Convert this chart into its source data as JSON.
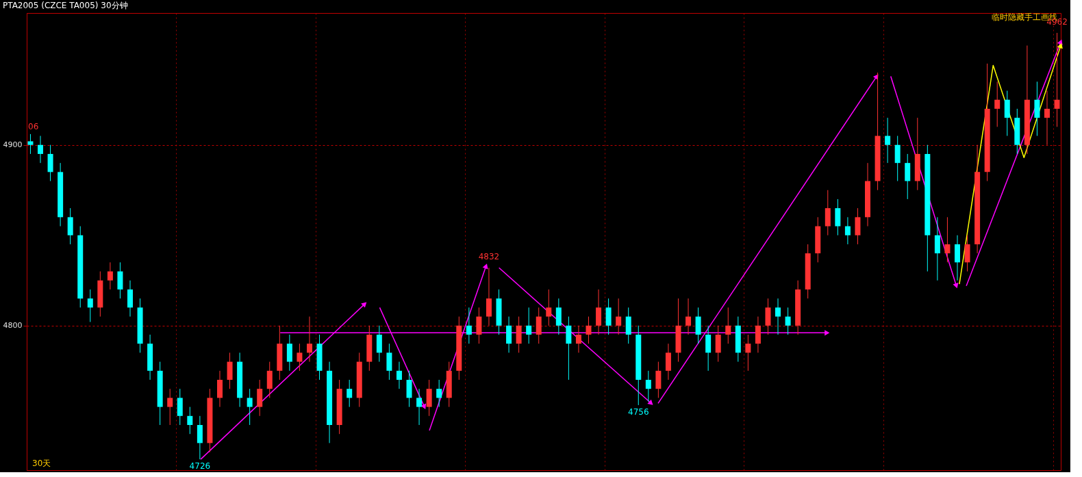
{
  "chart_data": {
    "type": "candlestick",
    "title": "PTA2005 (CZCE TA005)  30分钟",
    "categories": [
      null,
      null,
      null,
      null,
      null,
      null,
      null,
      null,
      null,
      null,
      null,
      null,
      null,
      null,
      null,
      null,
      null,
      null,
      null,
      null,
      null,
      null,
      null,
      null,
      null,
      null,
      null,
      null,
      null,
      null,
      null,
      null,
      null,
      null,
      null,
      null,
      null,
      null,
      null,
      null,
      null,
      null,
      null,
      null,
      null,
      null,
      null,
      null,
      null,
      null,
      null,
      null,
      null,
      null,
      null,
      null,
      null,
      null,
      null,
      null,
      null,
      null,
      null,
      null,
      null,
      null,
      null,
      null,
      null,
      null,
      null,
      null,
      null,
      null,
      null,
      null,
      null,
      null,
      null,
      null,
      null,
      null,
      null,
      null,
      null,
      null,
      null,
      null,
      null,
      null,
      null,
      null,
      null,
      null,
      null,
      null,
      null,
      null,
      null,
      null,
      null,
      null,
      null,
      null
    ],
    "ohlc": [
      [
        4902,
        4906,
        4895,
        4900
      ],
      [
        4900,
        4905,
        4890,
        4895
      ],
      [
        4895,
        4900,
        4880,
        4885
      ],
      [
        4885,
        4890,
        4855,
        4860
      ],
      [
        4860,
        4865,
        4845,
        4850
      ],
      [
        4850,
        4855,
        4810,
        4815
      ],
      [
        4815,
        4820,
        4802,
        4810
      ],
      [
        4810,
        4830,
        4805,
        4825
      ],
      [
        4825,
        4835,
        4820,
        4830
      ],
      [
        4830,
        4835,
        4815,
        4820
      ],
      [
        4820,
        4825,
        4805,
        4810
      ],
      [
        4810,
        4815,
        4785,
        4790
      ],
      [
        4790,
        4795,
        4770,
        4775
      ],
      [
        4775,
        4780,
        4745,
        4755
      ],
      [
        4755,
        4765,
        4745,
        4760
      ],
      [
        4760,
        4765,
        4745,
        4750
      ],
      [
        4750,
        4755,
        4740,
        4745
      ],
      [
        4745,
        4750,
        4726,
        4735
      ],
      [
        4735,
        4765,
        4730,
        4760
      ],
      [
        4760,
        4775,
        4755,
        4770
      ],
      [
        4770,
        4785,
        4765,
        4780
      ],
      [
        4780,
        4785,
        4755,
        4760
      ],
      [
        4760,
        4765,
        4745,
        4755
      ],
      [
        4755,
        4770,
        4750,
        4765
      ],
      [
        4765,
        4780,
        4760,
        4775
      ],
      [
        4775,
        4800,
        4770,
        4790
      ],
      [
        4790,
        4795,
        4775,
        4780
      ],
      [
        4780,
        4790,
        4775,
        4785
      ],
      [
        4785,
        4805,
        4780,
        4790
      ],
      [
        4790,
        4795,
        4770,
        4775
      ],
      [
        4775,
        4780,
        4735,
        4745
      ],
      [
        4745,
        4770,
        4740,
        4765
      ],
      [
        4765,
        4770,
        4755,
        4760
      ],
      [
        4760,
        4785,
        4755,
        4780
      ],
      [
        4780,
        4800,
        4775,
        4795
      ],
      [
        4795,
        4800,
        4780,
        4785
      ],
      [
        4785,
        4790,
        4770,
        4775
      ],
      [
        4775,
        4780,
        4765,
        4770
      ],
      [
        4770,
        4775,
        4755,
        4760
      ],
      [
        4760,
        4765,
        4745,
        4755
      ],
      [
        4755,
        4770,
        4750,
        4765
      ],
      [
        4765,
        4770,
        4755,
        4760
      ],
      [
        4760,
        4780,
        4755,
        4775
      ],
      [
        4775,
        4805,
        4770,
        4800
      ],
      [
        4800,
        4810,
        4790,
        4795
      ],
      [
        4795,
        4810,
        4790,
        4805
      ],
      [
        4805,
        4832,
        4800,
        4815
      ],
      [
        4815,
        4820,
        4795,
        4800
      ],
      [
        4800,
        4805,
        4785,
        4790
      ],
      [
        4790,
        4805,
        4785,
        4800
      ],
      [
        4800,
        4810,
        4790,
        4795
      ],
      [
        4795,
        4810,
        4790,
        4805
      ],
      [
        4805,
        4820,
        4800,
        4810
      ],
      [
        4810,
        4815,
        4795,
        4800
      ],
      [
        4800,
        4805,
        4770,
        4790
      ],
      [
        4790,
        4800,
        4785,
        4795
      ],
      [
        4795,
        4805,
        4790,
        4800
      ],
      [
        4800,
        4820,
        4795,
        4810
      ],
      [
        4810,
        4815,
        4795,
        4800
      ],
      [
        4800,
        4815,
        4795,
        4805
      ],
      [
        4805,
        4810,
        4790,
        4795
      ],
      [
        4795,
        4800,
        4756,
        4770
      ],
      [
        4770,
        4775,
        4758,
        4765
      ],
      [
        4765,
        4780,
        4760,
        4775
      ],
      [
        4775,
        4790,
        4770,
        4785
      ],
      [
        4785,
        4815,
        4780,
        4800
      ],
      [
        4800,
        4815,
        4795,
        4805
      ],
      [
        4805,
        4810,
        4790,
        4795
      ],
      [
        4795,
        4800,
        4775,
        4785
      ],
      [
        4785,
        4800,
        4780,
        4795
      ],
      [
        4795,
        4810,
        4790,
        4800
      ],
      [
        4800,
        4805,
        4780,
        4785
      ],
      [
        4785,
        4795,
        4775,
        4790
      ],
      [
        4790,
        4805,
        4785,
        4800
      ],
      [
        4800,
        4815,
        4795,
        4810
      ],
      [
        4810,
        4815,
        4795,
        4805
      ],
      [
        4805,
        4810,
        4795,
        4800
      ],
      [
        4800,
        4825,
        4795,
        4820
      ],
      [
        4820,
        4845,
        4815,
        4840
      ],
      [
        4840,
        4860,
        4835,
        4855
      ],
      [
        4855,
        4875,
        4850,
        4865
      ],
      [
        4865,
        4870,
        4850,
        4855
      ],
      [
        4855,
        4860,
        4845,
        4850
      ],
      [
        4850,
        4865,
        4845,
        4860
      ],
      [
        4860,
        4890,
        4855,
        4880
      ],
      [
        4880,
        4940,
        4875,
        4905
      ],
      [
        4905,
        4915,
        4890,
        4900
      ],
      [
        4900,
        4905,
        4880,
        4890
      ],
      [
        4890,
        4895,
        4870,
        4880
      ],
      [
        4880,
        4915,
        4875,
        4895
      ],
      [
        4895,
        4900,
        4830,
        4850
      ],
      [
        4850,
        4860,
        4825,
        4840
      ],
      [
        4840,
        4860,
        4835,
        4845
      ],
      [
        4845,
        4850,
        4825,
        4835
      ],
      [
        4835,
        4850,
        4830,
        4845
      ],
      [
        4845,
        4900,
        4840,
        4885
      ],
      [
        4885,
        4945,
        4880,
        4920
      ],
      [
        4920,
        4935,
        4910,
        4925
      ],
      [
        4925,
        4930,
        4905,
        4915
      ],
      [
        4915,
        4920,
        4895,
        4900
      ],
      [
        4900,
        4955,
        4895,
        4925
      ],
      [
        4925,
        4935,
        4905,
        4915
      ],
      [
        4915,
        4930,
        4900,
        4920
      ],
      [
        4920,
        4962,
        4910,
        4925
      ]
    ],
    "colors": [
      "#00ffff",
      "#00ffff",
      "#00ffff",
      "#00ffff",
      "#00ffff",
      "#00ffff",
      "#00ffff",
      "#ff3232",
      "#ff3232",
      "#00ffff",
      "#00ffff",
      "#00ffff",
      "#00ffff",
      "#00ffff",
      "#ff3232",
      "#00ffff",
      "#00ffff",
      "#00ffff",
      "#ff3232",
      "#ff3232",
      "#ff3232",
      "#00ffff",
      "#00ffff",
      "#ff3232",
      "#ff3232",
      "#ff3232",
      "#00ffff",
      "#ff3232",
      "#ff3232",
      "#00ffff",
      "#00ffff",
      "#ff3232",
      "#00ffff",
      "#ff3232",
      "#ff3232",
      "#00ffff",
      "#00ffff",
      "#00ffff",
      "#00ffff",
      "#00ffff",
      "#ff3232",
      "#00ffff",
      "#ff3232",
      "#ff3232",
      "#00ffff",
      "#ff3232",
      "#ff3232",
      "#00ffff",
      "#00ffff",
      "#ff3232",
      "#00ffff",
      "#ff3232",
      "#ff3232",
      "#00ffff",
      "#00ffff",
      "#ff3232",
      "#ff3232",
      "#ff3232",
      "#00ffff",
      "#ff3232",
      "#00ffff",
      "#00ffff",
      "#00ffff",
      "#ff3232",
      "#ff3232",
      "#ff3232",
      "#ff3232",
      "#00ffff",
      "#00ffff",
      "#ff3232",
      "#ff3232",
      "#00ffff",
      "#ff3232",
      "#ff3232",
      "#ff3232",
      "#00ffff",
      "#00ffff",
      "#ff3232",
      "#ff3232",
      "#ff3232",
      "#ff3232",
      "#00ffff",
      "#00ffff",
      "#ff3232",
      "#ff3232",
      "#ff3232",
      "#00ffff",
      "#00ffff",
      "#00ffff",
      "#ff3232",
      "#00ffff",
      "#00ffff",
      "#ff3232",
      "#00ffff",
      "#ff3232",
      "#ff3232",
      "#ff3232",
      "#ff3232",
      "#00ffff",
      "#00ffff",
      "#ff3232",
      "#00ffff",
      "#ff3232",
      "#ff3232"
    ],
    "annotations": [
      "30天",
      "临时隐藏手工画线",
      "06",
      {
        "text": "4726",
        "y": 4726
      },
      {
        "text": "4832",
        "y": 4832
      },
      {
        "text": "4756",
        "y": 4756
      },
      {
        "text": "4962",
        "y": 4962
      }
    ],
    "ylim": [
      4720,
      4973
    ],
    "yticks": [
      4800,
      4900
    ],
    "tick_labels": "y",
    "grid": true
  }
}
